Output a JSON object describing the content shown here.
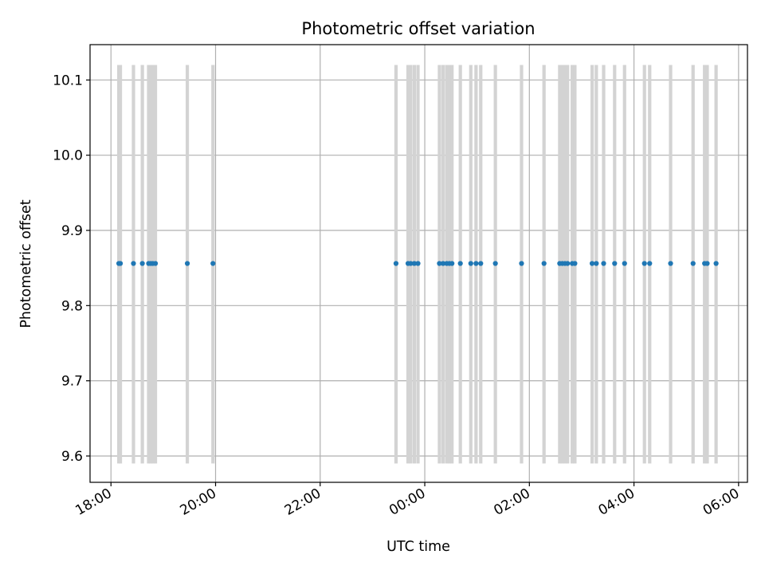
{
  "chart_data": {
    "type": "scatter",
    "title": "Photometric offset variation",
    "xlabel": "UTC time",
    "ylabel": "Photometric offset",
    "x_unit": "hours",
    "x_ticks": [
      {
        "value": 18,
        "label": "18:00"
      },
      {
        "value": 20,
        "label": "20:00"
      },
      {
        "value": 22,
        "label": "22:00"
      },
      {
        "value": 24,
        "label": "00:00"
      },
      {
        "value": 26,
        "label": "02:00"
      },
      {
        "value": 28,
        "label": "04:00"
      },
      {
        "value": 30,
        "label": "06:00"
      }
    ],
    "y_ticks": [
      {
        "value": 9.6,
        "label": "9.6"
      },
      {
        "value": 9.7,
        "label": "9.7"
      },
      {
        "value": 9.8,
        "label": "9.8"
      },
      {
        "value": 9.9,
        "label": "9.9"
      },
      {
        "value": 10.0,
        "label": "10.0"
      },
      {
        "value": 10.1,
        "label": "10.1"
      }
    ],
    "xlim": [
      17.6,
      30.17
    ],
    "ylim": [
      9.565,
      10.147
    ],
    "grid": true,
    "errorbar_range": [
      9.59,
      10.12
    ],
    "y_value": 9.856,
    "x": [
      18.15,
      18.18,
      18.43,
      18.6,
      18.72,
      18.76,
      18.8,
      18.85,
      19.46,
      19.95,
      23.45,
      23.68,
      23.73,
      23.8,
      23.87,
      24.28,
      24.35,
      24.42,
      24.47,
      24.52,
      24.68,
      24.88,
      24.98,
      25.07,
      25.35,
      25.85,
      26.28,
      26.58,
      26.63,
      26.68,
      26.73,
      26.82,
      26.87,
      27.2,
      27.28,
      27.42,
      27.63,
      27.82,
      28.2,
      28.3,
      28.7,
      29.13,
      29.35,
      29.4,
      29.57
    ],
    "colors": {
      "points": "#1f77b4",
      "errorbars": "#d3d3d3",
      "grid": "#b0b0b0"
    }
  }
}
